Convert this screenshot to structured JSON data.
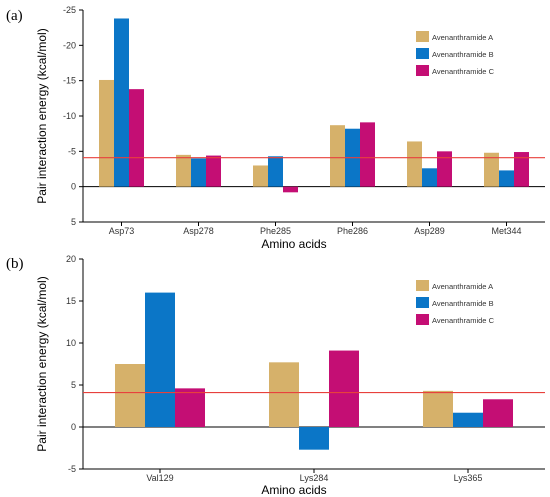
{
  "chart_data": [
    {
      "type": "bar",
      "panel_label": "(a)",
      "categories": [
        "Asp73",
        "Asp278",
        "Phe285",
        "Phe286",
        "Asp289",
        "Met344"
      ],
      "series": [
        {
          "name": "Avenanthramide A",
          "values": [
            -15.1,
            -4.5,
            -3.0,
            -8.7,
            -6.4,
            -4.8
          ]
        },
        {
          "name": "Avenanthramide B",
          "values": [
            -23.8,
            -4.0,
            -4.3,
            -8.2,
            -2.6,
            -2.3
          ]
        },
        {
          "name": "Avenanthramide C",
          "values": [
            -13.8,
            -4.4,
            0.8,
            -9.1,
            -5.0,
            -4.9
          ]
        }
      ],
      "xlabel": "Amino acids",
      "ylabel": "Pair interaction energy (kcal/mol)",
      "ylim": [
        5,
        -25
      ],
      "y_inverted": true,
      "yticks": [
        5,
        0,
        -5,
        -10,
        -15,
        -20,
        -25
      ],
      "reference_line": -4.1,
      "grid": false,
      "legend_position": "top-right"
    },
    {
      "type": "bar",
      "panel_label": "(b)",
      "categories": [
        "Val129",
        "Lys284",
        "Lys365"
      ],
      "series": [
        {
          "name": "Avenanthramide A",
          "values": [
            7.5,
            7.7,
            4.3
          ]
        },
        {
          "name": "Avenanthramide B",
          "values": [
            16.0,
            -2.7,
            1.7
          ]
        },
        {
          "name": "Avenanthramide C",
          "values": [
            4.6,
            9.1,
            3.3
          ]
        }
      ],
      "xlabel": "Amino acids",
      "ylabel": "Pair interaction energy (kcal/mol)",
      "ylim": [
        -5,
        20
      ],
      "y_inverted": false,
      "yticks": [
        20,
        15,
        10,
        5,
        0,
        -5
      ],
      "reference_line": 4.1,
      "grid": false,
      "legend_position": "top-right"
    }
  ],
  "colors": {
    "series": [
      "#d6b16a",
      "#0b76c7",
      "#c40e74"
    ],
    "reference_line": "#e8413c",
    "axis": "#000000"
  }
}
